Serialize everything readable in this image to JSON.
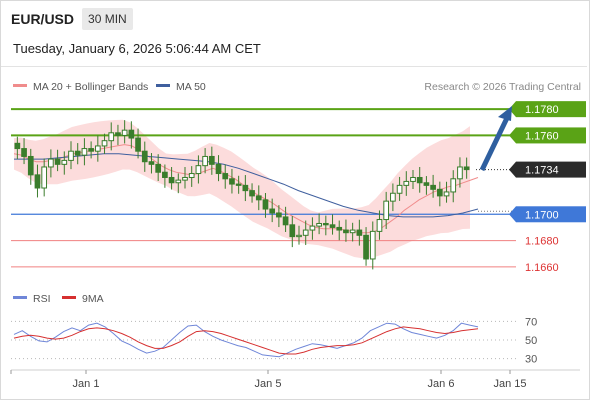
{
  "header": {
    "pair": "EUR/USD",
    "timeframe": "30 MIN",
    "datetime": "Tuesday, January 6, 2026 5:06:44 AM CET"
  },
  "legend": {
    "ma20": "MA 20 + Bollinger Bands",
    "ma50": "MA 50",
    "copyright": "Research © 2026 Trading Central",
    "rsi": "RSI",
    "rsi_ma": "9MA"
  },
  "colors": {
    "candle": "#3a7d2c",
    "ma20": "#f08c8c",
    "ma50": "#3f5f9e",
    "band_fill": "#fcd6d6",
    "resistance": "#5aa316",
    "support": "#3f78d8",
    "target_line": "#f08080",
    "arrow": "#2f5f9f",
    "rsi": "#6f86d8",
    "rsi_ma": "#d63030"
  },
  "chart_data": [
    {
      "type": "candlestick",
      "y_range": [
        1.165,
        1.179
      ],
      "x_ticks": [
        "Jan 1",
        "Jan 5",
        "Jan 6",
        "Jan 15"
      ],
      "levels": [
        {
          "value": 1.178,
          "label": "1.1780",
          "kind": "resistance"
        },
        {
          "value": 1.176,
          "label": "1.1760",
          "kind": "resistance"
        },
        {
          "value": 1.1734,
          "label": "1.1734",
          "kind": "last"
        },
        {
          "value": 1.17,
          "label": "1.1700",
          "kind": "support"
        },
        {
          "value": 1.168,
          "label": "1.1680",
          "kind": "target"
        },
        {
          "value": 1.166,
          "label": "1.1660",
          "kind": "target"
        }
      ],
      "close_series": [
        1.175,
        1.1744,
        1.173,
        1.172,
        1.1736,
        1.1742,
        1.1738,
        1.1741,
        1.1748,
        1.1745,
        1.175,
        1.1748,
        1.1752,
        1.1756,
        1.1762,
        1.176,
        1.1764,
        1.1758,
        1.1748,
        1.174,
        1.1738,
        1.1732,
        1.1728,
        1.1724,
        1.1726,
        1.1728,
        1.1731,
        1.1737,
        1.1744,
        1.1738,
        1.1731,
        1.1727,
        1.1723,
        1.1722,
        1.1718,
        1.1714,
        1.1711,
        1.1704,
        1.1701,
        1.1698,
        1.1692,
        1.1683,
        1.1684,
        1.1688,
        1.1691,
        1.1693,
        1.1692,
        1.169,
        1.1688,
        1.1686,
        1.1688,
        1.1684,
        1.1666,
        1.1687,
        1.1696,
        1.171,
        1.1716,
        1.1722,
        1.1725,
        1.1728,
        1.1724,
        1.1722,
        1.1719,
        1.1714,
        1.1717,
        1.1727,
        1.1736,
        1.1734
      ],
      "ma20": [
        1.1746,
        1.1745,
        1.1742,
        1.174,
        1.174,
        1.1741,
        1.1742,
        1.1744,
        1.1746,
        1.1747,
        1.1748,
        1.1749,
        1.175,
        1.1751,
        1.1752,
        1.1753,
        1.1752,
        1.1749,
        1.1745,
        1.1741,
        1.1737,
        1.1734,
        1.1732,
        1.1731,
        1.173,
        1.1731,
        1.1733,
        1.1735,
        1.1733,
        1.173,
        1.1727,
        1.1723,
        1.1719,
        1.1715,
        1.1712,
        1.1709,
        1.1705,
        1.1701,
        1.1698,
        1.1695,
        1.1692,
        1.169,
        1.1689,
        1.1689,
        1.1689,
        1.1688,
        1.1687,
        1.1686,
        1.1686,
        1.1687,
        1.169,
        1.1694,
        1.1698,
        1.1703,
        1.1707,
        1.1711,
        1.1714,
        1.1717,
        1.1719,
        1.1721,
        1.1722,
        1.1724,
        1.1726,
        1.1728
      ],
      "ma50": [
        1.1742,
        1.1742,
        1.1742,
        1.1743,
        1.1744,
        1.1745,
        1.1746,
        1.1746,
        1.1745,
        1.1744,
        1.1743,
        1.1742,
        1.1741,
        1.174,
        1.1738,
        1.1735,
        1.1731,
        1.1727,
        1.1723,
        1.1718,
        1.1714,
        1.171,
        1.1706,
        1.1703,
        1.1701,
        1.1699,
        1.1698,
        1.1698,
        1.1698,
        1.1699,
        1.1701,
        1.1704
      ]
    },
    {
      "type": "line",
      "y_ticks": [
        70,
        50,
        30
      ],
      "series": [
        {
          "name": "RSI",
          "values": [
            56,
            60,
            54,
            49,
            48,
            53,
            59,
            63,
            60,
            66,
            68,
            64,
            57,
            49,
            45,
            40,
            36,
            38,
            42,
            50,
            58,
            65,
            66,
            59,
            54,
            50,
            47,
            44,
            42,
            38,
            34,
            33,
            32,
            36,
            40,
            43,
            46,
            45,
            43,
            41,
            44,
            47,
            52,
            60,
            64,
            68,
            67,
            62,
            58,
            56,
            54,
            52,
            55,
            60,
            68,
            66,
            64
          ]
        },
        {
          "name": "9MA",
          "values": [
            52,
            54,
            55,
            54,
            52,
            51,
            52,
            55,
            59,
            62,
            63,
            62,
            60,
            57,
            53,
            48,
            44,
            41,
            41,
            44,
            48,
            54,
            59,
            60,
            59,
            57,
            54,
            51,
            48,
            45,
            42,
            39,
            36,
            35,
            35,
            37,
            40,
            42,
            43,
            44,
            44,
            45,
            47,
            51,
            55,
            59,
            62,
            64,
            63,
            62,
            60,
            58,
            57,
            58,
            60,
            61,
            62
          ]
        }
      ]
    }
  ]
}
